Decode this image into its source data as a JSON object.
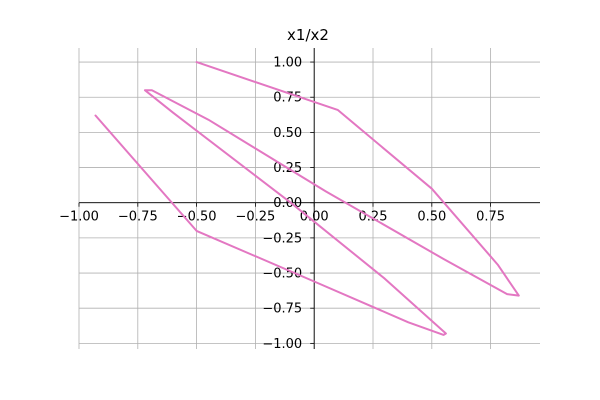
{
  "chart_data": {
    "type": "line",
    "title": "x1/x2",
    "xlabel": "",
    "ylabel": "",
    "xlim": [
      -1.0,
      0.96
    ],
    "ylim": [
      -1.04,
      1.1
    ],
    "xticks": [
      -1.0,
      -0.75,
      -0.5,
      -0.25,
      0.0,
      0.25,
      0.5,
      0.75
    ],
    "xtick_labels": [
      "−1.00",
      "−0.75",
      "−0.50",
      "−0.25",
      "0.00",
      "0.25",
      "0.50",
      "0.75"
    ],
    "yticks": [
      1.0,
      0.75,
      0.5,
      0.25,
      0.0,
      -0.25,
      -0.5,
      -0.75,
      -1.0
    ],
    "ytick_labels": [
      "1.00",
      "0.75",
      "0.50",
      "0.25",
      "0.00",
      "−0.25",
      "−0.50",
      "−0.75",
      "−1.00"
    ],
    "grid": true,
    "spines": "centered",
    "series": [
      {
        "color": "#e377c2",
        "x": [
          -0.5,
          0.1,
          0.5,
          0.78,
          0.87,
          0.82,
          0.55,
          0.05,
          -0.45,
          -0.69,
          -0.72,
          -0.6,
          -0.1,
          0.3,
          0.5,
          0.56,
          0.55,
          0.4,
          0.0,
          -0.5,
          -0.93
        ],
        "y": [
          1.0,
          0.66,
          0.1,
          -0.44,
          -0.66,
          -0.65,
          -0.4,
          0.08,
          0.59,
          0.8,
          0.8,
          0.64,
          0.0,
          -0.54,
          -0.84,
          -0.93,
          -0.94,
          -0.85,
          -0.56,
          -0.2,
          0.62
        ]
      }
    ]
  }
}
